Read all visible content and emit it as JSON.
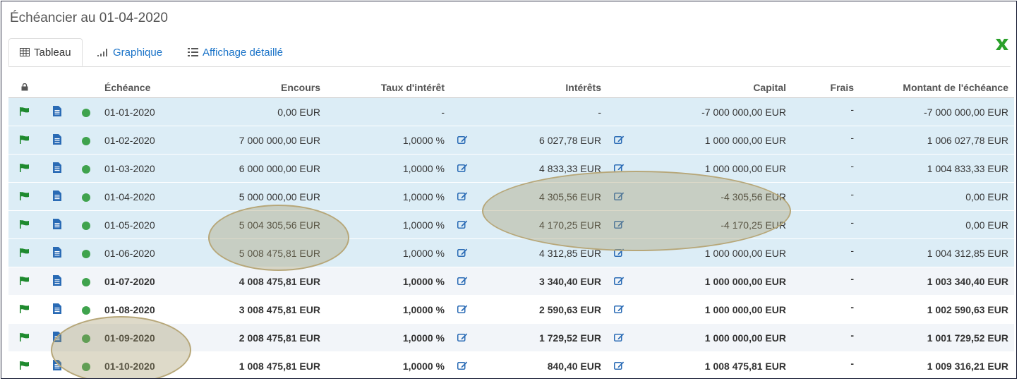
{
  "title": "Échéancier au 01-04-2020",
  "tabs": [
    {
      "label": "Tableau",
      "icon": "table-icon",
      "active": true
    },
    {
      "label": "Graphique",
      "icon": "bar-chart-icon",
      "active": false
    },
    {
      "label": "Affichage détaillé",
      "icon": "list-icon",
      "active": false
    }
  ],
  "export_icon": "excel-icon",
  "columns": {
    "lock": "lock-icon",
    "echeance": "Échéance",
    "encours": "Encours",
    "taux": "Taux d'intérêt",
    "interets": "Intérêts",
    "capital": "Capital",
    "frais": "Frais",
    "montant": "Montant de l'échéance"
  },
  "colors": {
    "accent": "#1a73c8",
    "past_row": "#dcedf6",
    "status_green": "#3fa34d",
    "flag_green": "#1e8a2e"
  },
  "rows": [
    {
      "date": "01-01-2020",
      "encours": "0,00 EUR",
      "taux": "-",
      "interets": "-",
      "capital": "-7 000 000,00 EUR",
      "frais": "-",
      "montant": "-7 000 000,00 EUR",
      "past": true,
      "editable": false
    },
    {
      "date": "01-02-2020",
      "encours": "7 000 000,00 EUR",
      "taux": "1,0000 %",
      "interets": "6 027,78 EUR",
      "capital": "1 000 000,00 EUR",
      "frais": "-",
      "montant": "1 006 027,78 EUR",
      "past": true,
      "editable": true
    },
    {
      "date": "01-03-2020",
      "encours": "6 000 000,00 EUR",
      "taux": "1,0000 %",
      "interets": "4 833,33 EUR",
      "capital": "1 000 000,00 EUR",
      "frais": "-",
      "montant": "1 004 833,33 EUR",
      "past": true,
      "editable": true
    },
    {
      "date": "01-04-2020",
      "encours": "5 000 000,00 EUR",
      "taux": "1,0000 %",
      "interets": "4 305,56 EUR",
      "capital": "-4 305,56 EUR",
      "frais": "-",
      "montant": "0,00 EUR",
      "past": true,
      "editable": true
    },
    {
      "date": "01-05-2020",
      "encours": "5 004 305,56 EUR",
      "taux": "1,0000 %",
      "interets": "4 170,25 EUR",
      "capital": "-4 170,25 EUR",
      "frais": "-",
      "montant": "0,00 EUR",
      "past": true,
      "editable": true
    },
    {
      "date": "01-06-2020",
      "encours": "5 008 475,81 EUR",
      "taux": "1,0000 %",
      "interets": "4 312,85 EUR",
      "capital": "1 000 000,00 EUR",
      "frais": "-",
      "montant": "1 004 312,85 EUR",
      "past": true,
      "editable": true
    },
    {
      "date": "01-07-2020",
      "encours": "4 008 475,81 EUR",
      "taux": "1,0000 %",
      "interets": "3 340,40 EUR",
      "capital": "1 000 000,00 EUR",
      "frais": "-",
      "montant": "1 003 340,40 EUR",
      "past": false,
      "editable": true
    },
    {
      "date": "01-08-2020",
      "encours": "3 008 475,81 EUR",
      "taux": "1,0000 %",
      "interets": "2 590,63 EUR",
      "capital": "1 000 000,00 EUR",
      "frais": "-",
      "montant": "1 002 590,63 EUR",
      "past": false,
      "editable": true
    },
    {
      "date": "01-09-2020",
      "encours": "2 008 475,81 EUR",
      "taux": "1,0000 %",
      "interets": "1 729,52 EUR",
      "capital": "1 000 000,00 EUR",
      "frais": "-",
      "montant": "1 001 729,52 EUR",
      "past": false,
      "editable": true
    },
    {
      "date": "01-10-2020",
      "encours": "1 008 475,81 EUR",
      "taux": "1,0000 %",
      "interets": "840,40 EUR",
      "capital": "1 008 475,81 EUR",
      "frais": "-",
      "montant": "1 009 316,21 EUR",
      "past": false,
      "editable": true
    }
  ]
}
